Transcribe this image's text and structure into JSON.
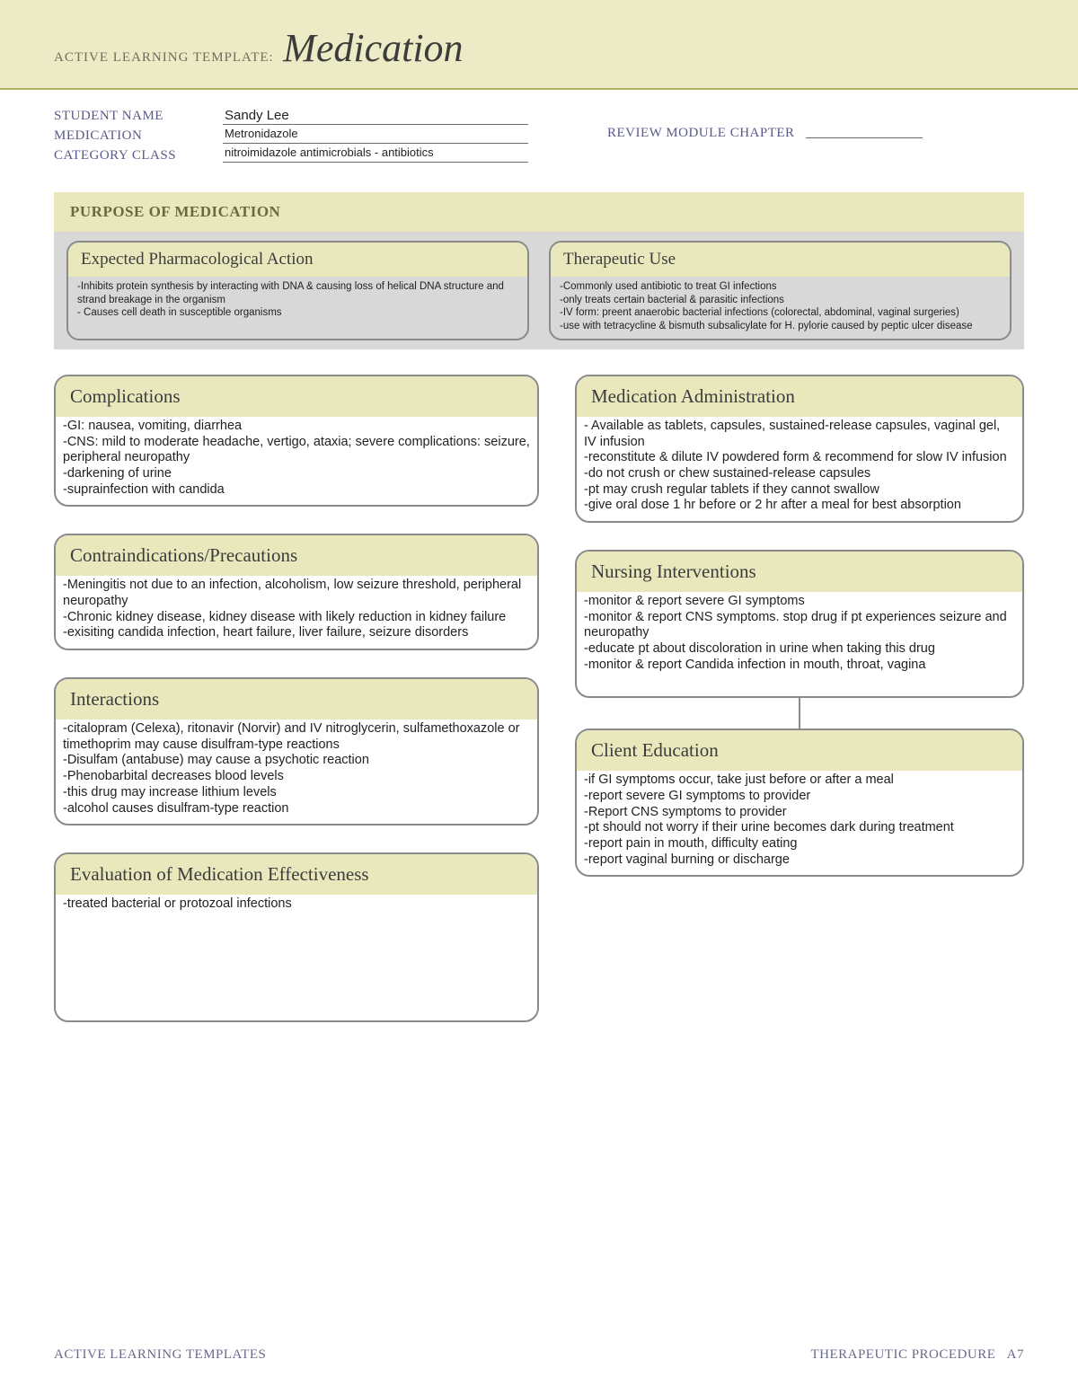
{
  "colors": {
    "band_bg": "#ecebc5",
    "band_border": "#b0af62",
    "card_header_bg": "#e9e8bd",
    "card_border": "#8a8a8a",
    "purpose_bg": "#d8d8d8",
    "label_color": "#5a5a88",
    "text_color": "#222222",
    "page_bg": "#ffffff"
  },
  "header": {
    "prefix": "ACTIVE LEARNING TEMPLATE:",
    "title": "Medication"
  },
  "meta": {
    "labels": {
      "student": "STUDENT NAME",
      "medication": "MEDICATION",
      "category": "CATEGORY CLASS"
    },
    "student_name": "Sandy Lee",
    "medication": "Metronidazole",
    "category_class": "nitroimidazole antimicrobials - antibiotics",
    "review_label": "REVIEW MODULE CHAPTER",
    "review_value": ""
  },
  "purpose": {
    "heading": "PURPOSE OF MEDICATION",
    "pharm_action": {
      "title": "Expected Pharmacological Action",
      "body": "-Inhibits protein synthesis by interacting with DNA & causing loss of helical DNA structure and strand breakage in the organism\n- Causes cell death in susceptible organisms"
    },
    "therapeutic_use": {
      "title": "Therapeutic Use",
      "body": "-Commonly used antibiotic to treat GI infections\n-only treats certain bacterial & parasitic infections\n-IV form: preent anaerobic bacterial infections (colorectal, abdominal, vaginal surgeries)\n-use with tetracycline & bismuth subsalicylate for H. pylorie caused by peptic ulcer disease"
    }
  },
  "cards": {
    "complications": {
      "title": "Complications",
      "body": "-GI: nausea, vomiting, diarrhea\n-CNS: mild to moderate headache, vertigo, ataxia; severe complications: seizure, peripheral neuropathy\n-darkening of urine\n-suprainfection with candida"
    },
    "contraindications": {
      "title": "Contraindications/Precautions",
      "body": "-Meningitis not due to an infection, alcoholism, low seizure threshold, peripheral neuropathy\n-Chronic kidney disease, kidney disease with likely reduction in kidney failure\n-exisiting candida infection, heart failure, liver failure, seizure disorders"
    },
    "interactions": {
      "title": "Interactions",
      "body": "-citalopram (Celexa), ritonavir (Norvir) and IV nitroglycerin, sulfamethoxazole or timethoprim may cause disulfram-type reactions\n-Disulfam (antabuse) may cause a psychotic reaction\n-Phenobarbital decreases blood levels\n-this drug may increase lithium levels\n-alcohol causes disulfram-type reaction"
    },
    "evaluation": {
      "title": "Evaluation of Medication Effectiveness",
      "body": "-treated bacterial or protozoal infections"
    },
    "administration": {
      "title": "Medication Administration",
      "body": "- Available as tablets, capsules, sustained-release capsules, vaginal gel, IV infusion\n-reconstitute & dilute IV powdered form & recommend for slow IV infusion\n-do not crush or chew sustained-release capsules\n-pt may crush regular tablets if they cannot swallow\n-give oral dose 1 hr before or 2 hr after a meal for best absorption"
    },
    "nursing": {
      "title": "Nursing Interventions",
      "body": "-monitor & report severe GI symptoms\n-monitor & report CNS symptoms. stop drug if pt experiences seizure and neuropathy\n-educate pt about discoloration in urine when taking this drug\n-monitor & report Candida infection in mouth, throat, vagina\n\n"
    },
    "client_education": {
      "title": "Client Education",
      "body": "-if GI symptoms occur, take just before or after a meal\n-report severe GI symptoms to provider\n-Report CNS symptoms to provider\n-pt should not worry if their urine becomes dark during treatment\n-report pain in mouth, difficulty eating\n-report vaginal burning or discharge"
    }
  },
  "footer": {
    "left": "ACTIVE LEARNING TEMPLATES",
    "right": "THERAPEUTIC PROCEDURE",
    "page_no": "A7"
  }
}
